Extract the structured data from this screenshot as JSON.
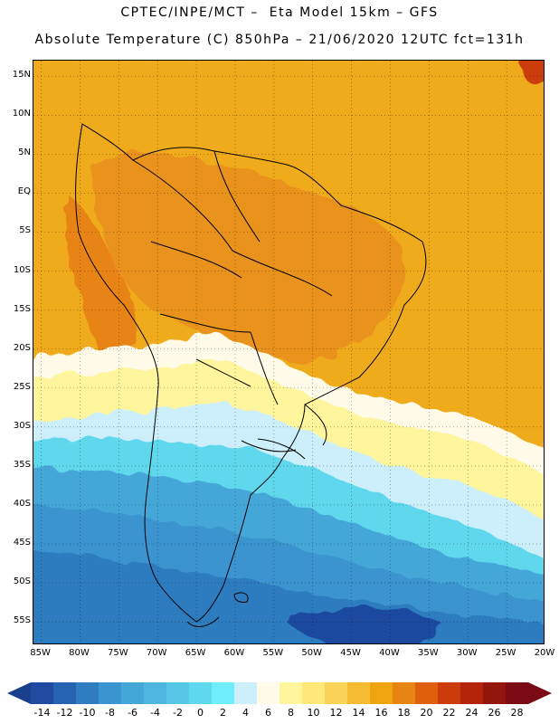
{
  "header": {
    "line1": "CPTEC/INPE/MCT –  Eta Model 15km – GFS",
    "line2": "Absolute Temperature (C) 850hPa – 21/06/2020 12UTC fct=131h"
  },
  "map": {
    "region": "South America",
    "lat_range_deg": [
      -58,
      17
    ],
    "lon_range_deg": [
      -86,
      -20
    ],
    "gridlines": "dotted",
    "lat_labels": [
      "15N",
      "10N",
      "5N",
      "EQ",
      "5S",
      "10S",
      "15S",
      "20S",
      "25S",
      "30S",
      "35S",
      "40S",
      "45S",
      "50S",
      "55S"
    ],
    "lon_labels": [
      "85W",
      "80W",
      "75W",
      "70W",
      "65W",
      "60W",
      "55W",
      "50W",
      "45W",
      "40W",
      "35W",
      "30W",
      "25W",
      "20W"
    ]
  },
  "colorbar": {
    "min_color": "#1b3f8c",
    "max_color": "#7a0a14",
    "labels": [
      "-14",
      "-12",
      "-10",
      "-8",
      "-6",
      "-4",
      "-2",
      "0",
      "2",
      "4",
      "6",
      "8",
      "10",
      "12",
      "14",
      "16",
      "18",
      "20",
      "22",
      "24",
      "26",
      "28"
    ],
    "colors": [
      "#1f4aa0",
      "#2563b0",
      "#2f7cc0",
      "#3a94cf",
      "#45a7d8",
      "#4fb6df",
      "#56c7e6",
      "#5ed8ee",
      "#6deef9",
      "#cdeffb",
      "#fffbe8",
      "#fff59c",
      "#ffe77a",
      "#fbd258",
      "#f5bb33",
      "#efa50f",
      "#e88412",
      "#de5f0c",
      "#cc3c0a",
      "#b2250a",
      "#94150c",
      "#7a0a14"
    ]
  }
}
